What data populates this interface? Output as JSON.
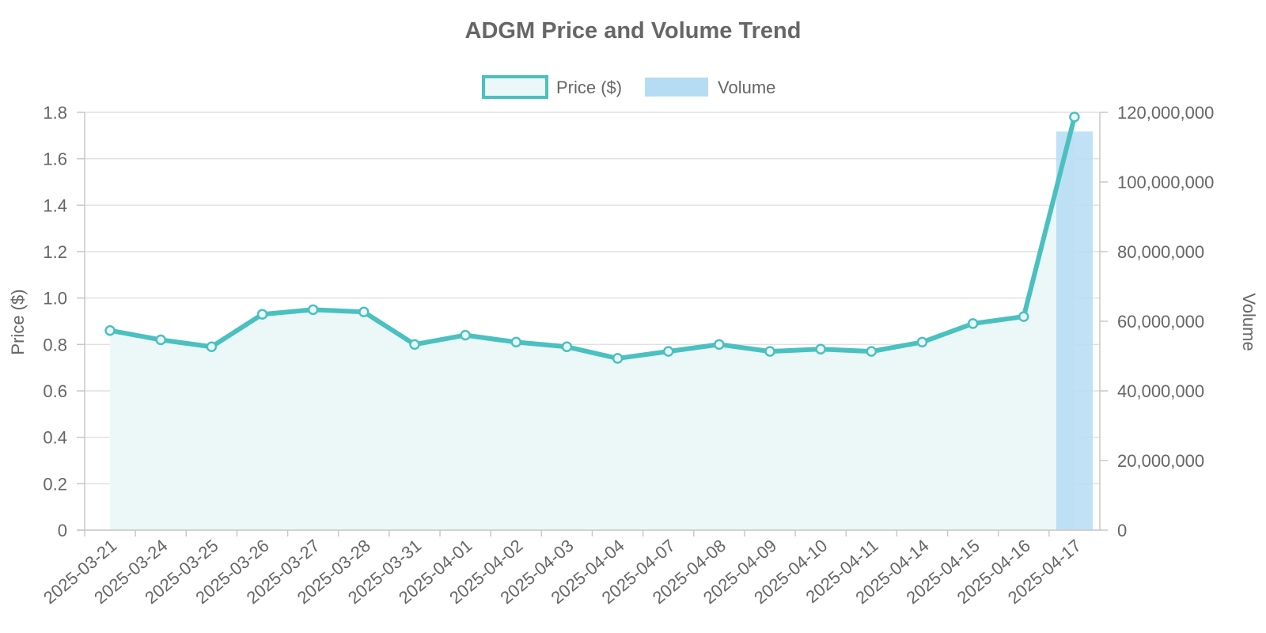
{
  "chart_data": {
    "type": "line",
    "title": "ADGM Price and Volume Trend",
    "categories": [
      "2025-03-21",
      "2025-03-24",
      "2025-03-25",
      "2025-03-26",
      "2025-03-27",
      "2025-03-28",
      "2025-03-31",
      "2025-04-01",
      "2025-04-02",
      "2025-04-03",
      "2025-04-04",
      "2025-04-07",
      "2025-04-08",
      "2025-04-09",
      "2025-04-10",
      "2025-04-11",
      "2025-04-14",
      "2025-04-15",
      "2025-04-16",
      "2025-04-17"
    ],
    "series": [
      {
        "name": "Price ($)",
        "type": "line",
        "axis": "left",
        "color": "#4bc0c0",
        "fill_color": "#ecf8f8",
        "values": [
          0.86,
          0.82,
          0.79,
          0.93,
          0.95,
          0.94,
          0.8,
          0.84,
          0.81,
          0.79,
          0.74,
          0.77,
          0.8,
          0.77,
          0.78,
          0.77,
          0.81,
          0.89,
          0.92,
          1.78
        ]
      },
      {
        "name": "Volume",
        "type": "bar",
        "axis": "right",
        "color": "#b6dcf4",
        "values": [
          0,
          0,
          0,
          0,
          0,
          0,
          0,
          0,
          0,
          0,
          0,
          0,
          0,
          0,
          0,
          0,
          0,
          0,
          0,
          114500000
        ]
      }
    ],
    "y_left": {
      "label": "Price ($)",
      "ylim": [
        0,
        1.8
      ],
      "ticks": [
        "0",
        "0.2",
        "0.4",
        "0.6",
        "0.8",
        "1.0",
        "1.2",
        "1.4",
        "1.6",
        "1.8"
      ]
    },
    "y_right": {
      "label": "Volume",
      "ylim": [
        0,
        120000000
      ],
      "ticks": [
        "0",
        "20,000,000",
        "40,000,000",
        "60,000,000",
        "80,000,000",
        "100,000,000",
        "120,000,000"
      ]
    },
    "legend_position": "top-center",
    "grid": true
  }
}
